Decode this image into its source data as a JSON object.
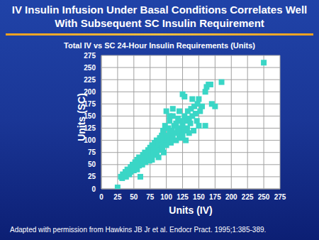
{
  "chart_data": {
    "type": "scatter",
    "title": "IV Insulin Infusion Under Basal Conditions Correlates Well With Subsequent SC Insulin Requirement",
    "subtitle": "Total IV vs SC 24-Hour Insulin Requirements (Units)",
    "x_label": "Units (IV)",
    "y_label": "Units (SC)",
    "annotations": [
      "Adapted with permission from Hawkins JB Jr et al. Endocr Pract. 1995;1:385-389."
    ],
    "x": [
      25,
      30,
      32,
      33,
      35,
      37,
      38,
      40,
      40,
      42,
      43,
      45,
      45,
      47,
      48,
      50,
      50,
      52,
      53,
      55,
      55,
      56,
      58,
      58,
      60,
      60,
      62,
      63,
      64,
      65,
      65,
      67,
      68,
      70,
      70,
      72,
      73,
      74,
      75,
      75,
      77,
      78,
      78,
      80,
      80,
      82,
      83,
      84,
      85,
      85,
      87,
      88,
      88,
      90,
      90,
      92,
      93,
      94,
      95,
      95,
      96,
      98,
      98,
      100,
      100,
      100,
      102,
      103,
      104,
      105,
      105,
      107,
      108,
      110,
      110,
      112,
      113,
      115,
      115,
      117,
      118,
      120,
      120,
      122,
      123,
      125,
      125,
      127,
      128,
      128,
      130,
      130,
      132,
      133,
      135,
      135,
      137,
      138,
      140,
      142,
      143,
      145,
      147,
      148,
      150,
      152,
      155,
      160,
      162,
      165,
      168,
      170,
      175,
      185,
      250,
      150,
      140,
      120,
      110,
      105,
      125,
      160
    ],
    "values": [
      3,
      25,
      22,
      30,
      28,
      35,
      25,
      32,
      40,
      38,
      30,
      45,
      35,
      42,
      50,
      38,
      48,
      55,
      45,
      40,
      60,
      52,
      48,
      65,
      55,
      25,
      60,
      50,
      70,
      58,
      65,
      75,
      55,
      62,
      70,
      80,
      65,
      58,
      75,
      85,
      70,
      90,
      60,
      80,
      72,
      95,
      85,
      75,
      100,
      70,
      88,
      95,
      65,
      80,
      105,
      90,
      110,
      85,
      100,
      120,
      75,
      95,
      130,
      110,
      90,
      160,
      105,
      125,
      100,
      115,
      140,
      95,
      120,
      105,
      150,
      130,
      115,
      100,
      135,
      125,
      145,
      110,
      120,
      140,
      105,
      130,
      195,
      120,
      150,
      190,
      140,
      100,
      125,
      160,
      145,
      115,
      135,
      165,
      150,
      120,
      170,
      155,
      140,
      175,
      130,
      160,
      170,
      200,
      210,
      215,
      215,
      175,
      170,
      220,
      260,
      185,
      185,
      160,
      165,
      150,
      110,
      130
    ],
    "color": "#3ad6c6",
    "marker": "square",
    "xlim": [
      0,
      275
    ],
    "ylim": [
      0,
      275
    ],
    "xticks": [
      0,
      25,
      50,
      75,
      100,
      125,
      150,
      175,
      200,
      225,
      250,
      275
    ],
    "yticks": [
      0,
      25,
      50,
      75,
      100,
      125,
      150,
      175,
      200,
      225,
      250,
      275
    ],
    "grid": true
  }
}
